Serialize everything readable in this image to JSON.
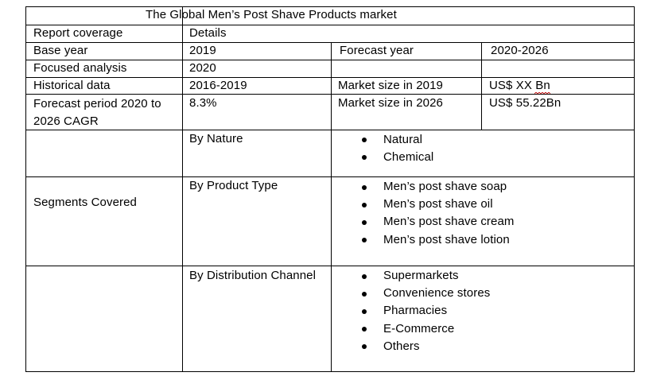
{
  "title": "The Global Men’s Post Shave Products market",
  "header": {
    "col1": "Report coverage",
    "col2": "Details"
  },
  "rows": {
    "base_year_label": "Base year",
    "base_year_value": "2019",
    "forecast_year_label": "Forecast year",
    "forecast_year_value": "2020-2026",
    "focused_analysis_label": "Focused analysis",
    "focused_analysis_value": "2020",
    "historical_label": "Historical data",
    "historical_value": "2016-2019",
    "market_size_2019_label": "Market size in 2019",
    "market_size_2019_value": "US$ XX Bn",
    "cagr_label": "Forecast period 2020 to 2026 CAGR",
    "cagr_value": "8.3%",
    "market_size_2026_label": "Market size in 2026",
    "market_size_2026_value": "US$  55.22Bn"
  },
  "segments": {
    "label": "Segments Covered",
    "groups": [
      {
        "name": "By Nature",
        "items": [
          "Natural",
          "Chemical"
        ]
      },
      {
        "name": "By Product Type",
        "items": [
          "Men’s post  shave soap",
          "Men’s post  shave oil",
          "Men’s post  shave cream",
          "Men’s post  shave lotion"
        ]
      },
      {
        "name": "By Distribution Channel",
        "items": [
          "Supermarkets",
          "Convenience stores",
          "Pharmacies",
          "E-Commerce",
          "Others"
        ]
      }
    ]
  }
}
